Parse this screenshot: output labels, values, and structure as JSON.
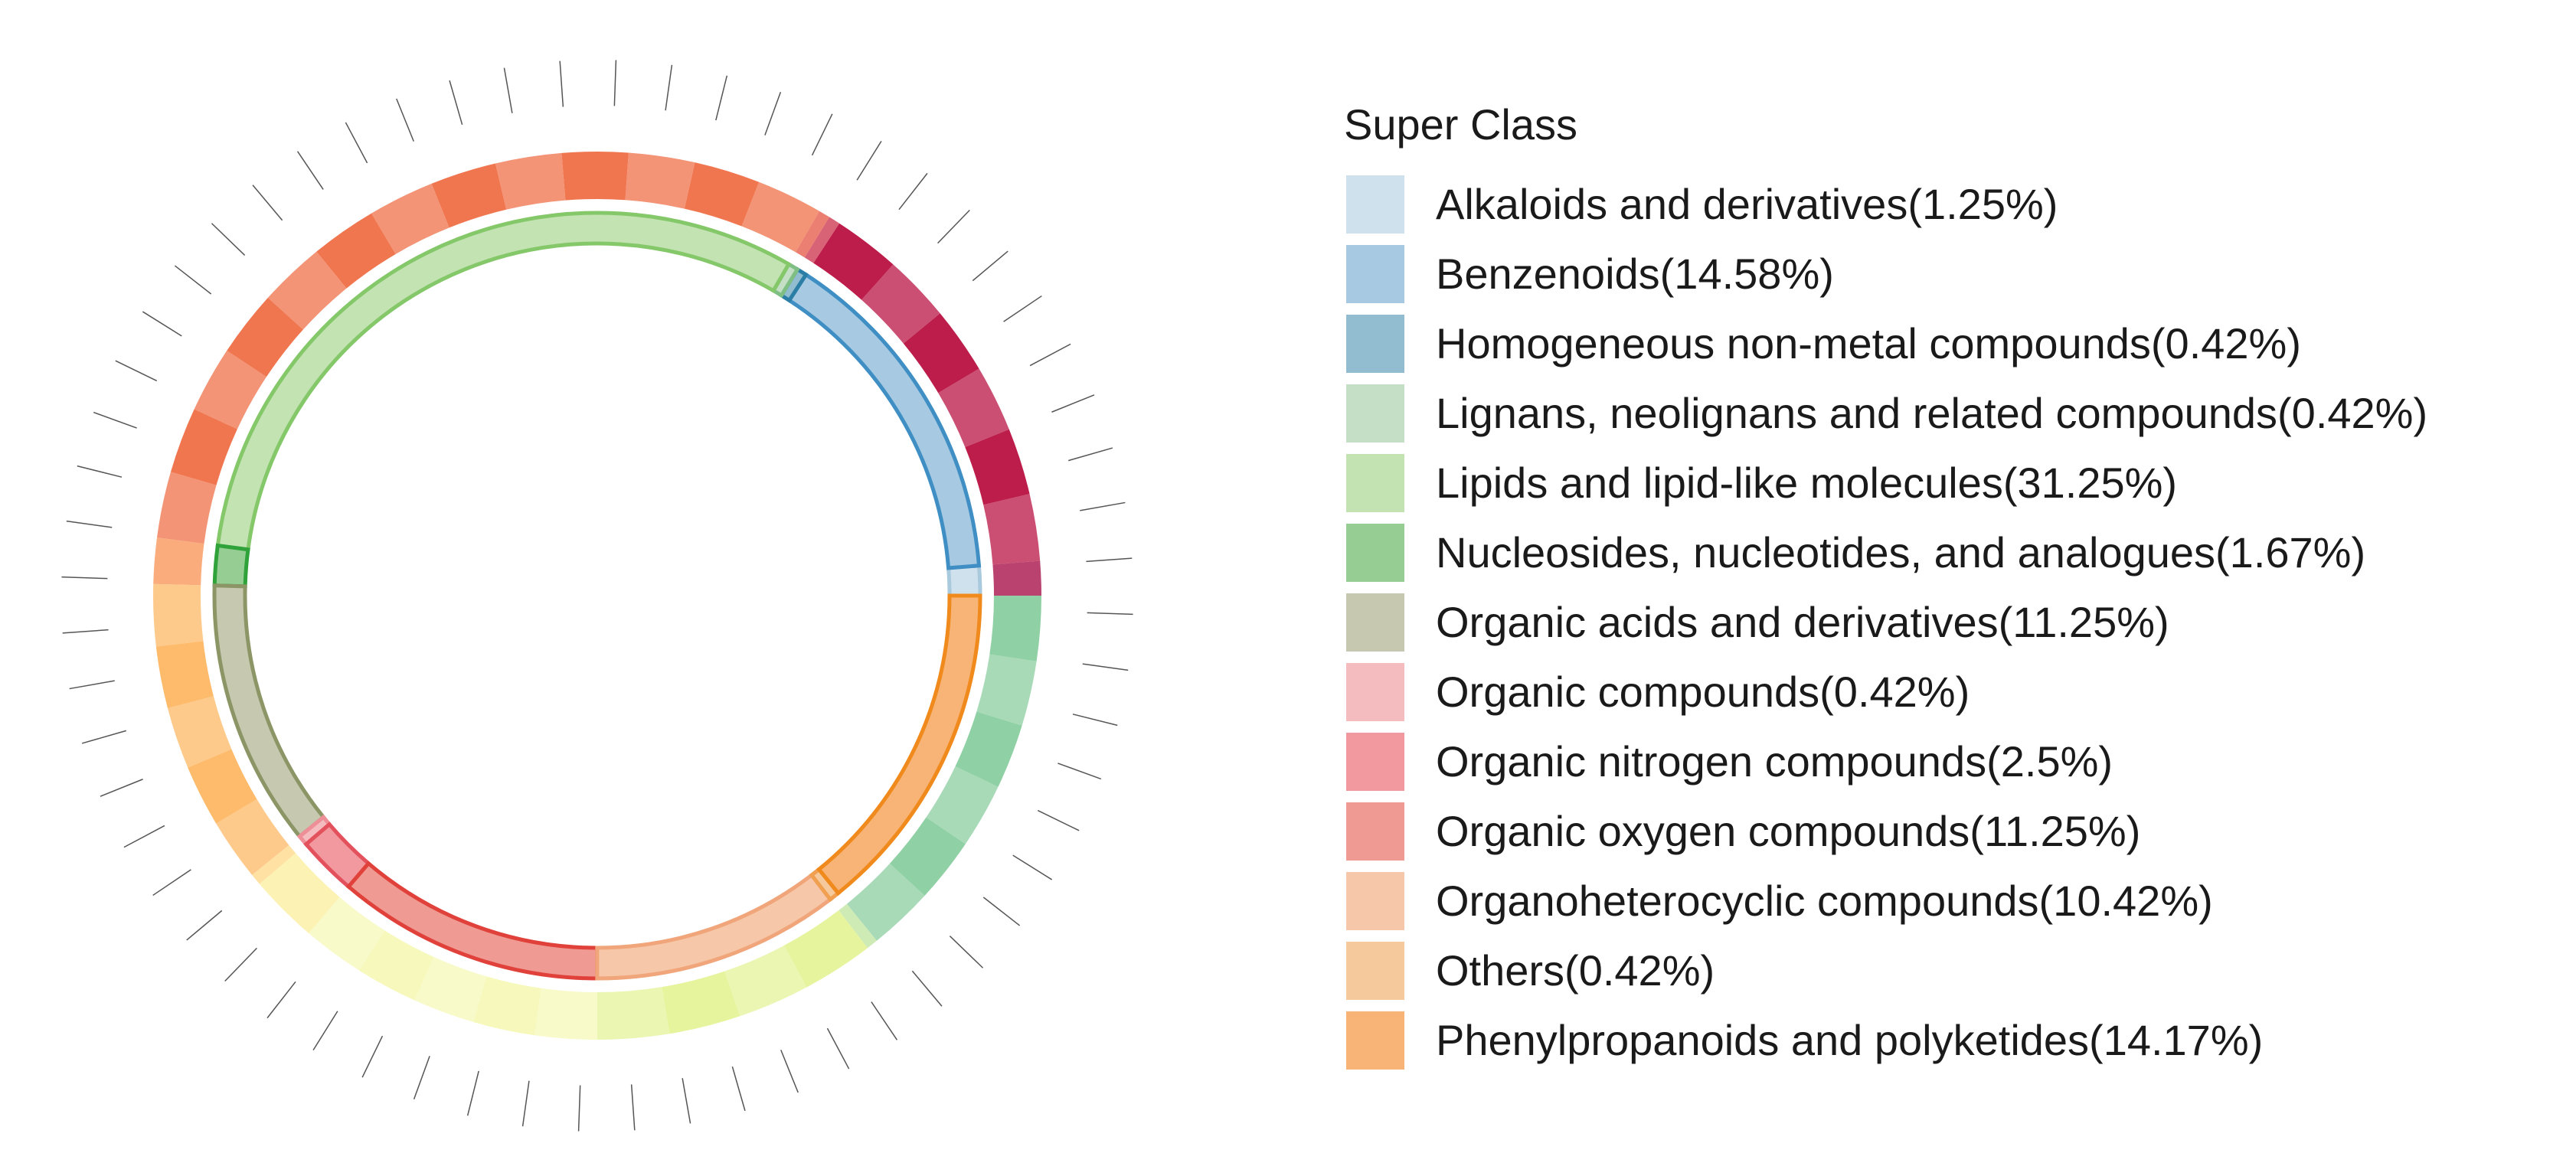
{
  "chart_data": {
    "type": "donut",
    "legend_title": "Super Class",
    "legend_position": "right",
    "categories": [
      {
        "label": "Alkaloids and derivatives(1.25%)",
        "name": "Alkaloids and derivatives",
        "value": 1.25,
        "fill": "#cfe1ec",
        "stroke": "#a9c9dd"
      },
      {
        "label": "Benzenoids(14.58%)",
        "name": "Benzenoids",
        "value": 14.58,
        "fill": "#a7c9e2",
        "stroke": "#3f8fc4"
      },
      {
        "label": "Homogeneous non-metal compounds(0.42%)",
        "name": "Homogeneous non-metal compounds",
        "value": 0.42,
        "fill": "#92bccf",
        "stroke": "#2b7fa6"
      },
      {
        "label": "Lignans, neolignans and related compounds(0.42%)",
        "name": "Lignans, neolignans and related compounds",
        "value": 0.42,
        "fill": "#c4dfc6",
        "stroke": "#7fbf84"
      },
      {
        "label": "Lipids and lipid-like molecules(31.25%)",
        "name": "Lipids and lipid-like molecules",
        "value": 31.25,
        "fill": "#c3e3b3",
        "stroke": "#84c86a"
      },
      {
        "label": "Nucleosides, nucleotides, and analogues(1.67%)",
        "name": "Nucleosides, nucleotides, and analogues",
        "value": 1.67,
        "fill": "#95cd92",
        "stroke": "#2fa23a"
      },
      {
        "label": "Organic acids and derivatives(11.25%)",
        "name": "Organic acids and derivatives",
        "value": 11.25,
        "fill": "#c6c8af",
        "stroke": "#8c9565"
      },
      {
        "label": "Organic compounds(0.42%)",
        "name": "Organic compounds",
        "value": 0.42,
        "fill": "#f5bcc0",
        "stroke": "#ee8f97"
      },
      {
        "label": "Organic nitrogen compounds(2.5%)",
        "name": "Organic nitrogen compounds",
        "value": 2.5,
        "fill": "#f1999e",
        "stroke": "#e3515c"
      },
      {
        "label": "Organic oxygen compounds(11.25%)",
        "name": "Organic oxygen compounds",
        "value": 11.25,
        "fill": "#ef9a92",
        "stroke": "#e0413a"
      },
      {
        "label": "Organoheterocyclic compounds(10.42%)",
        "name": "Organoheterocyclic compounds",
        "value": 10.42,
        "fill": "#f6c8a9",
        "stroke": "#f0a67a"
      },
      {
        "label": "Others(0.42%)",
        "name": "Others",
        "value": 0.42,
        "fill": "#f6c99c",
        "stroke": "#f0a050"
      },
      {
        "label": "Phenylpropanoids and polyketides(14.17%)",
        "name": "Phenylpropanoids and polyketides",
        "value": 14.17,
        "fill": "#f7b476",
        "stroke": "#f08a1c"
      }
    ],
    "inner_ring_start_direction": "3 o'clock, counter-clockwise",
    "outer_ring_subclass_palette": [
      "#a50e45",
      "#bc1d4a",
      "#cd3650",
      "#e55b4a",
      "#f07650",
      "#f99557",
      "#fdbb6b",
      "#fed989",
      "#fbee9f",
      "#f6f9bb",
      "#e6f49e",
      "#c2e5a0",
      "#8fd0a4",
      "#5ab5ab",
      "#3d8bbc",
      "#4a6bb0",
      "#5a4ba1"
    ]
  }
}
